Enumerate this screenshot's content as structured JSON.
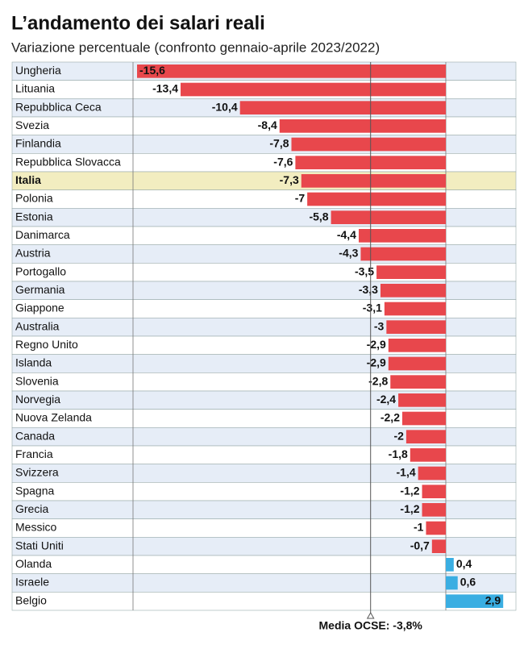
{
  "chart_data": {
    "type": "bar",
    "orientation": "horizontal",
    "title": "L’andamento dei salari reali",
    "subtitle": "Variazione percentuale (confronto gennaio-aprile 2023/2022)",
    "categories": [
      "Ungheria",
      "Lituania",
      "Repubblica Ceca",
      "Svezia",
      "Finlandia",
      "Repubblica Slovacca",
      "Italia",
      "Polonia",
      "Estonia",
      "Danimarca",
      "Austria",
      "Portogallo",
      "Germania",
      "Giappone",
      "Australia",
      "Regno Unito",
      "Islanda",
      "Slovenia",
      "Norvegia",
      "Nuova Zelanda",
      "Canada",
      "Francia",
      "Svizzera",
      "Spagna",
      "Grecia",
      "Messico",
      "Stati Uniti",
      "Olanda",
      "Israele",
      "Belgio"
    ],
    "values": [
      -15.6,
      -13.4,
      -10.4,
      -8.4,
      -7.8,
      -7.6,
      -7.3,
      -7,
      -5.8,
      -4.4,
      -4.3,
      -3.5,
      -3.3,
      -3.1,
      -3,
      -2.9,
      -2.9,
      -2.8,
      -2.4,
      -2.2,
      -2,
      -1.8,
      -1.4,
      -1.2,
      -1.2,
      -1,
      -0.7,
      0.4,
      0.6,
      2.9
    ],
    "value_labels": [
      "-15,6",
      "-13,4",
      "-10,4",
      "-8,4",
      "-7,8",
      "-7,6",
      "-7,3",
      "-7",
      "-5,8",
      "-4,4",
      "-4,3",
      "-3,5",
      "-3,3",
      "-3,1",
      "-3",
      "-2,9",
      "-2,9",
      "-2,8",
      "-2,4",
      "-2,2",
      "-2",
      "-1,8",
      "-1,4",
      "-1,2",
      "-1,2",
      "-1",
      "-0,7",
      "0,4",
      "0,6",
      "2,9"
    ],
    "negative_color": "#e8474c",
    "positive_color": "#3aaee2",
    "highlight_category": "Italia",
    "highlight_color": "#f2edc0",
    "mean": {
      "value": -3.8,
      "label": "Media OCSE: -3,8%"
    }
  }
}
